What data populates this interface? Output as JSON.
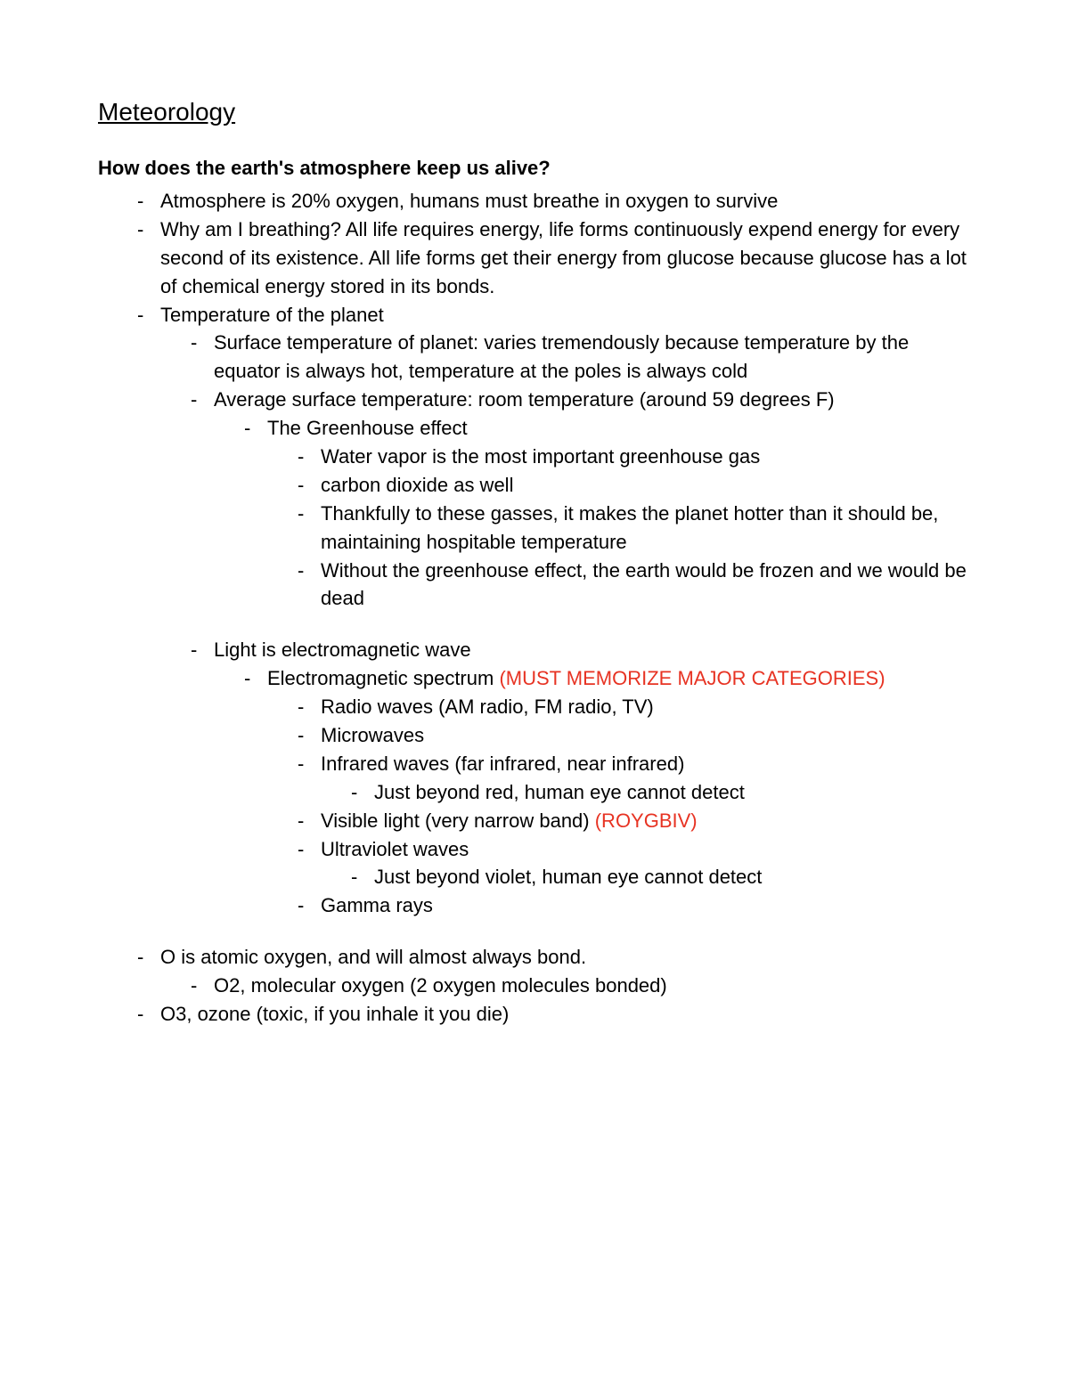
{
  "title": "Meteorology",
  "question": "How does the earth's atmosphere keep us alive?",
  "items": {
    "i1": "Atmosphere is 20% oxygen, humans must breathe in oxygen to survive",
    "i2": "Why am I breathing? All life requires energy, life forms continuously expend energy for every second of its existence. All life forms get their energy from glucose because glucose has a lot of chemical energy stored in its bonds.",
    "i3": "Temperature of the planet",
    "i3a": "Surface temperature of planet: varies tremendously because temperature by the equator is always hot, temperature at the poles is always cold",
    "i3b": "Average surface temperature: room temperature (around 59 degrees F)",
    "i3b1": "The Greenhouse effect",
    "i3b1a": "Water vapor is the most important greenhouse gas",
    "i3b1b": "carbon dioxide as well",
    "i3b1c": "Thankfully to these gasses, it makes the planet hotter than it should be, maintaining hospitable temperature",
    "i3b1d": "Without the greenhouse effect, the earth would be frozen and we would be dead",
    "i3c": "Light is electromagnetic wave",
    "i3c1_a": "Electromagnetic spectrum ",
    "i3c1_b": "(MUST MEMORIZE MAJOR CATEGORIES)",
    "i3c1a": "Radio waves (AM radio, FM radio, TV)",
    "i3c1b": "Microwaves",
    "i3c1c": "Infrared waves (far infrared, near infrared)",
    "i3c1c1": "Just beyond red, human eye cannot detect",
    "i3c1d_a": "Visible light (very narrow band) ",
    "i3c1d_b": "(ROYGBIV)",
    "i3c1e": "Ultraviolet waves",
    "i3c1e1": "Just beyond violet, human eye cannot detect",
    "i3c1f": "Gamma rays",
    "i4": "O is atomic oxygen, and will almost always bond.",
    "i4a": "O2, molecular oxygen (2 oxygen molecules bonded)",
    "i5": "O3, ozone (toxic, if you inhale it you die)"
  },
  "colors": {
    "text": "#000000",
    "red": "#e73323",
    "background": "#ffffff"
  }
}
